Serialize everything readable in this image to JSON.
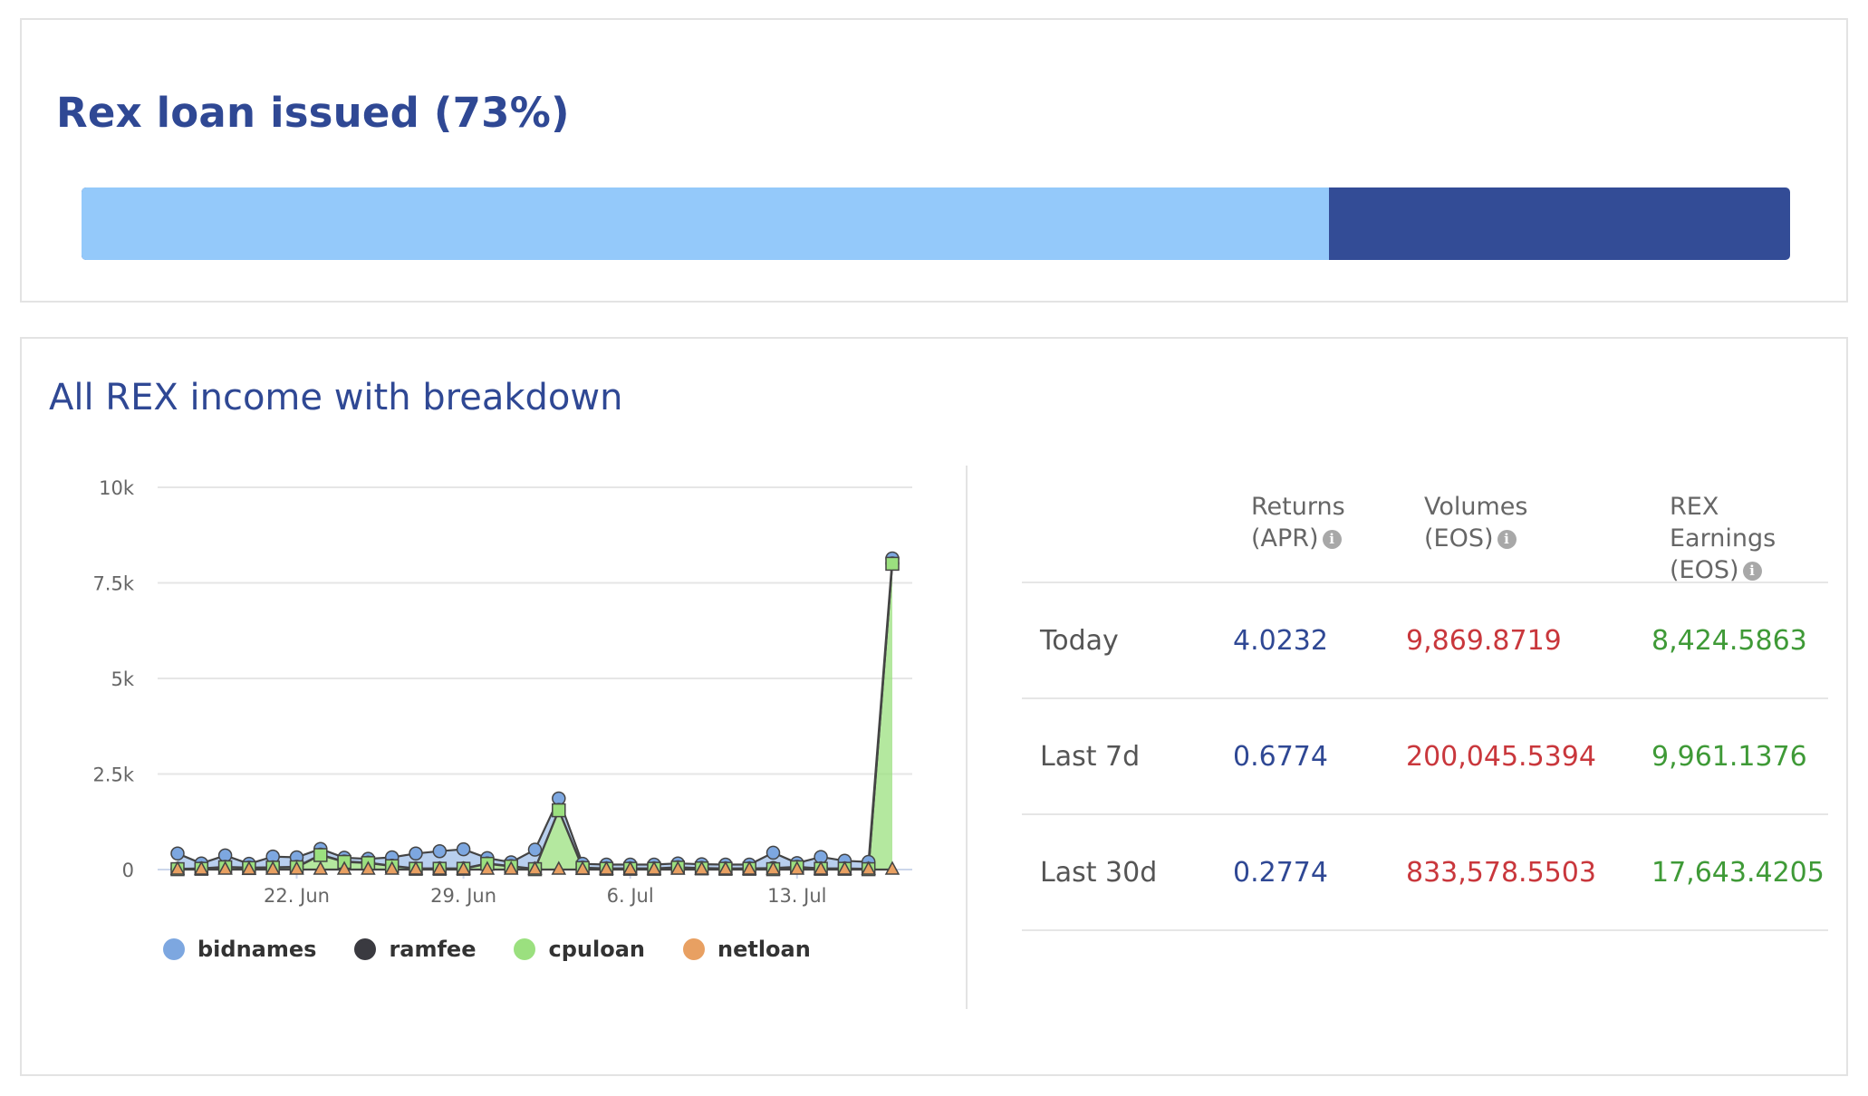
{
  "loan": {
    "title": "Rex loan issued (73%)",
    "percent": 73,
    "colors": {
      "issued": "#94c9fa",
      "remaining": "#334c96"
    }
  },
  "income": {
    "title": "All REX income with breakdown"
  },
  "chart_data": {
    "type": "line",
    "title": "",
    "xlabel": "",
    "ylabel": "",
    "ylim": [
      0,
      10000
    ],
    "y_ticks": [
      0,
      2500,
      5000,
      7500,
      10000
    ],
    "y_tick_labels": [
      "0",
      "2.5k",
      "5k",
      "7.5k",
      "10k"
    ],
    "x_ticks": [
      "22. Jun",
      "29. Jun",
      "6. Jul",
      "13. Jul"
    ],
    "x_dates": [
      "17. Jun",
      "18. Jun",
      "19. Jun",
      "20. Jun",
      "21. Jun",
      "22. Jun",
      "23. Jun",
      "24. Jun",
      "25. Jun",
      "26. Jun",
      "27. Jun",
      "28. Jun",
      "29. Jun",
      "30. Jun",
      "1. Jul",
      "2. Jul",
      "3. Jul",
      "4. Jul",
      "5. Jul",
      "6. Jul",
      "7. Jul",
      "8. Jul",
      "9. Jul",
      "10. Jul",
      "11. Jul",
      "12. Jul",
      "13. Jul",
      "14. Jul",
      "15. Jul",
      "16. Jul",
      "17. Jul"
    ],
    "stacked": true,
    "legend_position": "bottom",
    "grid": true,
    "series": [
      {
        "name": "bidnames",
        "color": "#7da7e0",
        "marker": "circle",
        "values": [
          400,
          130,
          300,
          100,
          280,
          250,
          150,
          100,
          100,
          220,
          390,
          450,
          500,
          140,
          100,
          500,
          300,
          100,
          100,
          100,
          100,
          100,
          100,
          100,
          100,
          400,
          100,
          300,
          200,
          180,
          130
        ]
      },
      {
        "name": "ramfee",
        "color": "#3a3a40",
        "marker": "circle",
        "values": [
          10,
          10,
          10,
          10,
          10,
          10,
          10,
          10,
          10,
          10,
          10,
          10,
          10,
          10,
          10,
          10,
          10,
          10,
          10,
          10,
          10,
          10,
          10,
          10,
          10,
          30,
          10,
          10,
          10,
          10,
          10
        ]
      },
      {
        "name": "cpuloan",
        "color": "#9be07f",
        "marker": "square",
        "values": [
          10,
          20,
          60,
          40,
          50,
          60,
          380,
          200,
          170,
          90,
          20,
          20,
          20,
          150,
          80,
          10,
          1550,
          40,
          20,
          20,
          20,
          50,
          30,
          20,
          20,
          10,
          60,
          20,
          20,
          10,
          8000
        ]
      },
      {
        "name": "netloan",
        "color": "#e8a062",
        "marker": "triangle",
        "values": [
          0,
          0,
          0,
          0,
          0,
          0,
          0,
          0,
          0,
          0,
          0,
          0,
          0,
          0,
          0,
          0,
          0,
          0,
          0,
          0,
          0,
          0,
          0,
          0,
          0,
          0,
          0,
          0,
          0,
          0,
          0
        ]
      }
    ]
  },
  "stats": {
    "headers": [
      {
        "line1": "Returns",
        "line2": "(APR)"
      },
      {
        "line1": "Volumes",
        "line2": "(EOS)"
      },
      {
        "line1": "REX Earnings",
        "line2": "(EOS)"
      }
    ],
    "info_glyph": "i",
    "rows": [
      {
        "label": "Today",
        "apr": "4.0232",
        "volume": "9,869.8719",
        "earnings": "8,424.5863"
      },
      {
        "label": "Last 7d",
        "apr": "0.6774",
        "volume": "200,045.5394",
        "earnings": "9,961.1376"
      },
      {
        "label": "Last 30d",
        "apr": "0.2774",
        "volume": "833,578.5503",
        "earnings": "17,643.4205"
      }
    ]
  }
}
